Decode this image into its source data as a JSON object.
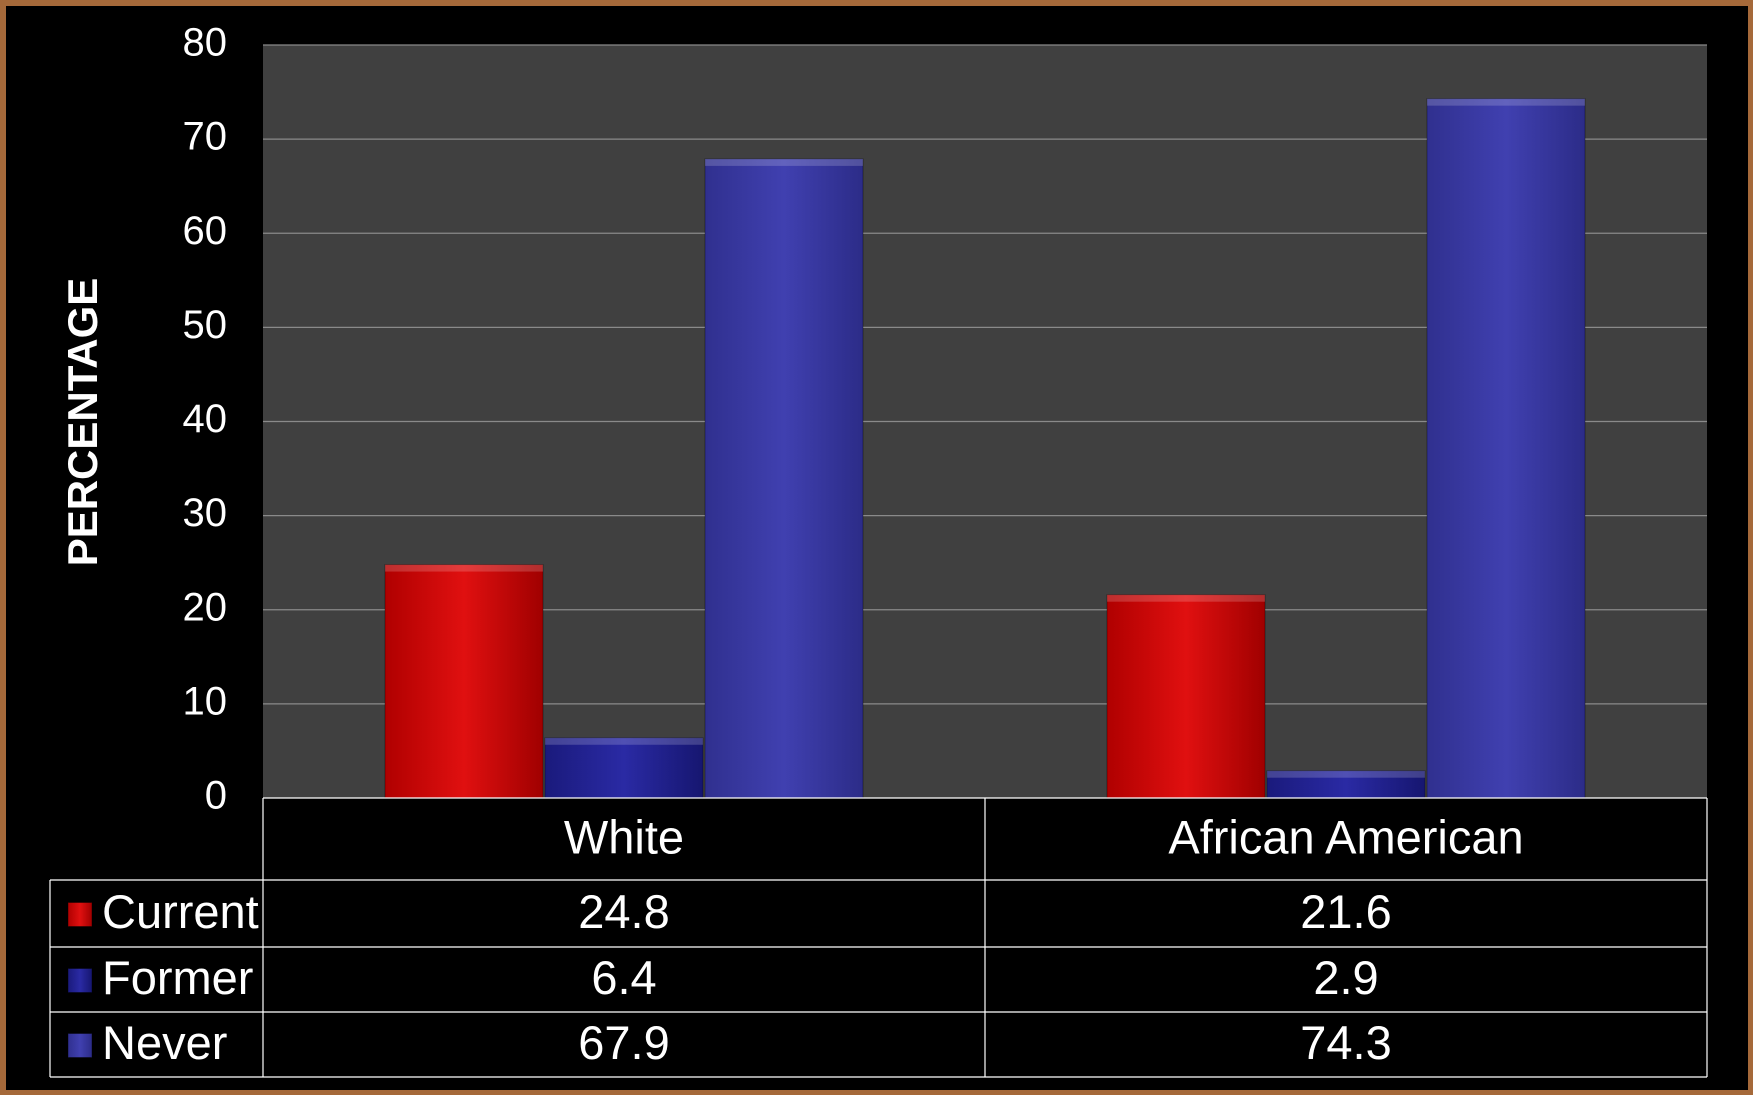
{
  "chart_data": {
    "type": "bar",
    "title": "",
    "xlabel": "",
    "ylabel": "PERCENTAGE",
    "ylim": [
      0,
      80
    ],
    "yticks": [
      0,
      10,
      20,
      30,
      40,
      50,
      60,
      70,
      80
    ],
    "grid": true,
    "legend": "data table below chart",
    "categories": [
      "White",
      "African American"
    ],
    "series": [
      {
        "name": "Current",
        "values": [
          24.8,
          21.6
        ],
        "color": "#d20a0a"
      },
      {
        "name": "Former",
        "values": [
          6.4,
          2.9
        ],
        "color": "#24249a"
      },
      {
        "name": "Never",
        "values": [
          67.9,
          74.3
        ],
        "color": "#3b3ba8"
      }
    ],
    "data_table": {
      "rows": [
        {
          "label": "Current",
          "cells": [
            "24.8",
            "21.6"
          ]
        },
        {
          "label": "Former",
          "cells": [
            "6.4",
            "2.9"
          ]
        },
        {
          "label": "Never",
          "cells": [
            "67.9",
            "74.3"
          ]
        }
      ]
    }
  },
  "colors": {
    "plot_background": "#404040",
    "gridline": "#8a8a8a",
    "frame_background": "#000000",
    "slide_border": "#a5693a"
  }
}
